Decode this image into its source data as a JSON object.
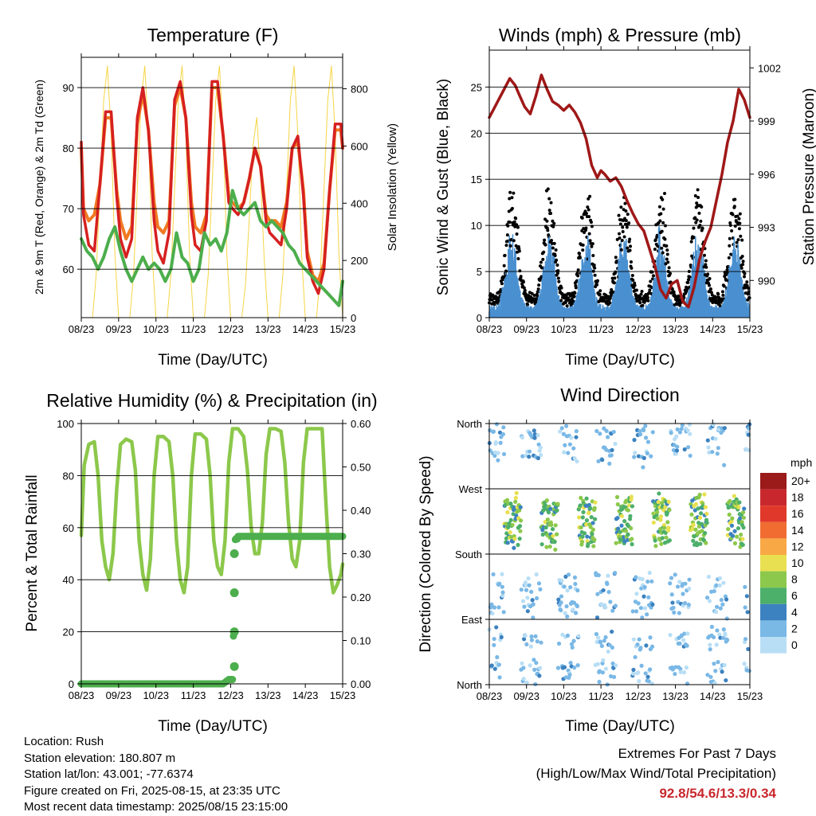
{
  "colors": {
    "temp_2m": "#d62020",
    "temp_9m": "#f07a22",
    "dewpoint": "#4cae4c",
    "solar": "#f5d547",
    "gust": "#000000",
    "sonic_wind": "#4a90d0",
    "pressure": "#a01818",
    "rh": "#8cc84b",
    "precip": "#4cae4c",
    "grid": "#000000",
    "extremes_text": "#c8282d"
  },
  "x_tick_labels": [
    "08/23",
    "09/23",
    "10/23",
    "11/23",
    "12/23",
    "13/23",
    "14/23",
    "15/23"
  ],
  "chart_data": [
    {
      "id": "temperature",
      "type": "line",
      "title": "Temperature (F)",
      "xlabel": "Time (Day/UTC)",
      "ylabel": "2m & 9m T (Red, Orange) & 2m Td (Green)",
      "y2label": "Solar Insolation (Yellow)",
      "ylim": [
        52,
        95
      ],
      "yticks": [
        60,
        70,
        80,
        90
      ],
      "y2lim": [
        0,
        910
      ],
      "y2ticks": [
        0,
        200,
        400,
        600,
        800
      ],
      "xlim": [
        0,
        7
      ],
      "grid": true,
      "series": [
        {
          "name": "2m T",
          "axis": "left",
          "color": "#d62020",
          "x": [
            0,
            0.06,
            0.2,
            0.35,
            0.5,
            0.65,
            0.8,
            0.95,
            1.05,
            1.2,
            1.35,
            1.5,
            1.65,
            1.8,
            1.95,
            2.05,
            2.2,
            2.35,
            2.5,
            2.65,
            2.8,
            2.95,
            3.05,
            3.2,
            3.35,
            3.5,
            3.65,
            3.8,
            3.95,
            4.05,
            4.2,
            4.35,
            4.5,
            4.65,
            4.8,
            4.95,
            5.05,
            5.2,
            5.35,
            5.5,
            5.65,
            5.8,
            5.95,
            6.05,
            6.2,
            6.35,
            6.5,
            6.65,
            6.8,
            6.95,
            7
          ],
          "y": [
            81,
            69,
            64,
            63,
            74,
            86,
            86,
            72,
            65,
            62,
            65,
            85,
            90,
            83,
            68,
            63,
            61,
            66,
            88,
            91,
            85,
            69,
            64,
            63,
            68,
            91,
            91,
            82,
            71,
            70,
            69,
            71,
            75,
            80,
            77,
            68,
            66,
            65,
            64,
            70,
            80,
            82,
            72,
            62,
            58,
            56,
            60,
            73,
            84,
            84,
            80
          ]
        },
        {
          "name": "9m T",
          "axis": "left",
          "color": "#f07a22",
          "x": [
            0,
            0.06,
            0.2,
            0.35,
            0.5,
            0.65,
            0.8,
            0.95,
            1.05,
            1.2,
            1.35,
            1.5,
            1.65,
            1.8,
            1.95,
            2.05,
            2.2,
            2.35,
            2.5,
            2.65,
            2.8,
            2.95,
            3.05,
            3.2,
            3.35,
            3.5,
            3.65,
            3.8,
            3.95,
            4.05,
            4.2,
            4.35,
            4.5,
            4.65,
            4.8,
            4.95,
            5.05,
            5.2,
            5.35,
            5.5,
            5.65,
            5.8,
            5.95,
            6.05,
            6.2,
            6.35,
            6.5,
            6.65,
            6.8,
            6.95,
            7
          ],
          "y": [
            80,
            70,
            68,
            69,
            74,
            85,
            85,
            73,
            68,
            65,
            67,
            84,
            89,
            83,
            71,
            67,
            66,
            68,
            87,
            90,
            85,
            71,
            67,
            66,
            69,
            90,
            90,
            82,
            72,
            71,
            70,
            71,
            75,
            80,
            77,
            69,
            68,
            68,
            67,
            71,
            80,
            81,
            73,
            63,
            59,
            58,
            61,
            73,
            83,
            83,
            80
          ]
        },
        {
          "name": "2m Td",
          "axis": "left",
          "color": "#4cae4c",
          "x": [
            0,
            0.15,
            0.3,
            0.45,
            0.6,
            0.75,
            0.9,
            1.05,
            1.2,
            1.35,
            1.5,
            1.65,
            1.8,
            1.95,
            2.1,
            2.25,
            2.4,
            2.55,
            2.7,
            2.85,
            3.0,
            3.15,
            3.3,
            3.45,
            3.6,
            3.75,
            3.9,
            4.05,
            4.2,
            4.35,
            4.5,
            4.65,
            4.8,
            4.95,
            5.1,
            5.25,
            5.4,
            5.55,
            5.7,
            5.85,
            6.0,
            6.15,
            6.3,
            6.45,
            6.6,
            6.75,
            6.9,
            7
          ],
          "y": [
            65,
            63,
            62,
            60,
            62,
            65,
            67,
            63,
            60,
            58,
            60,
            62,
            60,
            61,
            60,
            58,
            60,
            66,
            62,
            61,
            58,
            60,
            66,
            64,
            65,
            63,
            66,
            73,
            70,
            69,
            70,
            71,
            68,
            67,
            68,
            67,
            66,
            64,
            63,
            61,
            60,
            59,
            58,
            57,
            56,
            55,
            54,
            58
          ]
        },
        {
          "name": "Solar",
          "axis": "right",
          "color": "#f5d547",
          "x": [
            0,
            0.3,
            0.4,
            0.5,
            0.6,
            0.7,
            0.8,
            0.9,
            1.0,
            1.3,
            1.4,
            1.5,
            1.6,
            1.7,
            1.8,
            1.9,
            2.0,
            2.3,
            2.4,
            2.5,
            2.6,
            2.7,
            2.8,
            2.9,
            3.0,
            3.3,
            3.4,
            3.5,
            3.6,
            3.7,
            3.8,
            3.9,
            4.0,
            4.3,
            4.4,
            4.5,
            4.6,
            4.7,
            4.8,
            4.9,
            5.0,
            5.3,
            5.4,
            5.5,
            5.6,
            5.7,
            5.8,
            5.9,
            6.0,
            6.3,
            6.4,
            6.5,
            6.6,
            6.7,
            6.8,
            6.9,
            7
          ],
          "y": [
            0,
            0,
            150,
            450,
            760,
            880,
            640,
            220,
            0,
            0,
            150,
            450,
            760,
            880,
            640,
            220,
            0,
            0,
            150,
            450,
            760,
            880,
            640,
            220,
            0,
            0,
            150,
            450,
            760,
            880,
            640,
            220,
            0,
            0,
            120,
            350,
            600,
            700,
            500,
            200,
            0,
            0,
            150,
            450,
            760,
            880,
            640,
            220,
            0,
            0,
            150,
            450,
            760,
            880,
            640,
            220,
            0
          ]
        }
      ]
    },
    {
      "id": "winds",
      "type": "scatter",
      "title": "Winds (mph) & Pressure (mb)",
      "xlabel": "Time (Day/UTC)",
      "ylabel": "Sonic Wind & Gust (Blue, Black)",
      "y2label": "Station Pressure (Maroon)",
      "ylim": [
        0,
        29
      ],
      "yticks": [
        0,
        5,
        10,
        15,
        20,
        25
      ],
      "y2lim": [
        987.9,
        1003
      ],
      "y2ticks": [
        990,
        993,
        996,
        999,
        1002
      ],
      "xlim": [
        0,
        7
      ],
      "grid": true,
      "daily_wind_profile": {
        "hours_of_day": [
          0,
          0.25,
          0.4,
          0.55,
          0.7,
          0.85,
          1.0
        ],
        "gust_mean": [
          2,
          2,
          5,
          11,
          10,
          4,
          2
        ],
        "sonic_mean": [
          1,
          1,
          3,
          7,
          6,
          2,
          1
        ]
      },
      "series": [
        {
          "name": "Pressure",
          "axis": "right",
          "color": "#a01818",
          "x": [
            0,
            0.1,
            0.25,
            0.4,
            0.55,
            0.7,
            0.8,
            0.95,
            1.1,
            1.25,
            1.4,
            1.55,
            1.7,
            1.85,
            2.0,
            2.15,
            2.3,
            2.45,
            2.6,
            2.75,
            2.9,
            3.0,
            3.1,
            3.25,
            3.4,
            3.55,
            3.7,
            3.85,
            4.0,
            4.15,
            4.3,
            4.45,
            4.6,
            4.75,
            4.9,
            5.05,
            5.2,
            5.35,
            5.5,
            5.65,
            5.8,
            5.95,
            6.1,
            6.25,
            6.4,
            6.55,
            6.7,
            6.85,
            7
          ],
          "y": [
            999.2,
            999.6,
            1000.2,
            1000.8,
            1001.4,
            1001.0,
            1000.5,
            999.8,
            999.4,
            1000.4,
            1001.6,
            1000.8,
            1000.1,
            999.9,
            999.6,
            999.9,
            999.5,
            998.9,
            998.0,
            996.5,
            995.8,
            996.2,
            996.0,
            995.6,
            995.8,
            995.3,
            994.5,
            993.8,
            993.2,
            992.8,
            991.8,
            990.8,
            989.5,
            989.0,
            989.8,
            990.0,
            988.8,
            988.5,
            989.6,
            991.2,
            992.2,
            993.0,
            994.5,
            996.0,
            997.8,
            999.0,
            1000.8,
            1000.2,
            999.2
          ]
        }
      ]
    },
    {
      "id": "humidity",
      "type": "line",
      "title": "Relative Humidity (%) & Precipitation (in)",
      "xlabel": "Time (Day/UTC)",
      "ylabel": "Percent & Total Rainfall",
      "ylim": [
        0,
        100
      ],
      "yticks": [
        0,
        20,
        40,
        60,
        80,
        100
      ],
      "y2lim": [
        0,
        0.6
      ],
      "y2ticks": [
        0.0,
        0.1,
        0.2,
        0.3,
        0.4,
        0.5,
        0.6
      ],
      "y2tick_labels": [
        "0.00",
        "0.10",
        "0.20",
        "0.30",
        "0.40",
        "0.50",
        "0.60"
      ],
      "xlim": [
        0,
        7
      ],
      "grid": true,
      "series": [
        {
          "name": "RH",
          "axis": "left",
          "color": "#8cc84b",
          "x": [
            0,
            0.08,
            0.2,
            0.35,
            0.45,
            0.55,
            0.65,
            0.75,
            0.85,
            0.95,
            1.05,
            1.2,
            1.35,
            1.45,
            1.55,
            1.65,
            1.75,
            1.85,
            1.95,
            2.05,
            2.2,
            2.35,
            2.45,
            2.55,
            2.65,
            2.75,
            2.85,
            2.95,
            3.05,
            3.2,
            3.35,
            3.45,
            3.55,
            3.65,
            3.75,
            3.85,
            3.95,
            4.05,
            4.2,
            4.35,
            4.45,
            4.55,
            4.65,
            4.75,
            4.85,
            4.95,
            5.05,
            5.2,
            5.35,
            5.45,
            5.55,
            5.65,
            5.75,
            5.85,
            5.95,
            6.05,
            6.2,
            6.35,
            6.45,
            6.55,
            6.65,
            6.75,
            6.85,
            6.95,
            7
          ],
          "y": [
            57,
            84,
            92,
            93,
            80,
            55,
            45,
            40,
            50,
            75,
            92,
            94,
            93,
            82,
            55,
            42,
            36,
            48,
            80,
            95,
            95,
            93,
            80,
            55,
            40,
            35,
            45,
            80,
            96,
            96,
            94,
            80,
            55,
            45,
            42,
            55,
            85,
            98,
            98,
            95,
            82,
            60,
            50,
            50,
            62,
            88,
            98,
            98,
            97,
            85,
            62,
            48,
            45,
            55,
            85,
            98,
            98,
            98,
            98,
            70,
            45,
            35,
            38,
            42,
            46
          ]
        },
        {
          "name": "Precip",
          "axis": "right",
          "color": "#4cae4c",
          "x": [
            0,
            3.8,
            3.95,
            4.05,
            4.1,
            4.12,
            4.14,
            4.16,
            4.2,
            4.3,
            7
          ],
          "y": [
            0,
            0,
            0.01,
            0.01,
            0.21,
            0.33,
            0.34,
            0.33,
            0.34,
            0.34,
            0.34
          ]
        }
      ]
    },
    {
      "id": "wind_direction",
      "type": "scatter",
      "title": "Wind Direction",
      "xlabel": "Time (Day/UTC)",
      "ylabel": "Direction (Colored By Speed)",
      "ytick_labels": [
        "North",
        "East",
        "South",
        "West",
        "North"
      ],
      "ytick_values": [
        0,
        90,
        180,
        270,
        360
      ],
      "ylim": [
        0,
        360
      ],
      "xlim": [
        0,
        7
      ],
      "grid": true,
      "colorbar": {
        "title": "mph",
        "levels": [
          "20+",
          "18",
          "16",
          "14",
          "12",
          "10",
          "8",
          "6",
          "4",
          "2",
          "0"
        ],
        "colors": [
          "#9b1a1a",
          "#c8282d",
          "#e0382a",
          "#f06c30",
          "#f8a845",
          "#e8e050",
          "#8cc84b",
          "#4caf6a",
          "#3c82c0",
          "#7ab8e6",
          "#b8def5"
        ]
      },
      "daily_direction_profile": {
        "night_directions_deg": [
          20,
          60,
          110,
          140,
          320,
          350
        ],
        "day_directions_deg": [
          200,
          220,
          240,
          250
        ]
      }
    }
  ],
  "footer": {
    "location": "Location: Rush",
    "elevation": "Station elevation: 180.807 m",
    "latlon": "Station lat/lon: 43.001; -77.6374",
    "created": "Figure created on Fri, 2025-08-15, at 23:35 UTC",
    "latest": "Most recent data timestamp: 2025/08/15 23:15:00"
  },
  "extremes": {
    "title": "Extremes For Past 7 Days",
    "subtitle": "(High/Low/Max Wind/Total Precipitation)",
    "values": "92.8/54.6/13.3/0.34"
  }
}
